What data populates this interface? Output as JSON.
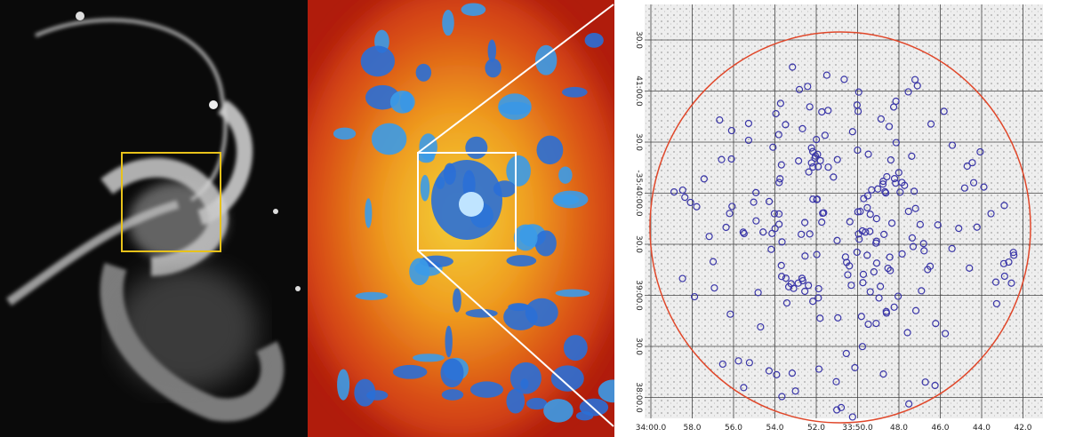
{
  "panels": {
    "map": {
      "x_axis_labels": [
        "34:00.0",
        "58.0",
        "56.0",
        "54.0",
        "52.0",
        "33:50.0",
        "48.0",
        "46.0",
        "44.0",
        "42.0"
      ],
      "y_axis_labels": [
        "30.0",
        "41:00.0",
        "30.0",
        "-35:40:00.0",
        "30.0",
        "39:00.0",
        "30.0",
        "38:00.0"
      ]
    }
  }
}
